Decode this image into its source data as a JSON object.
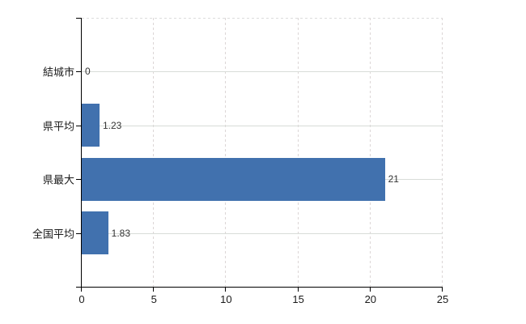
{
  "chart_data": {
    "type": "bar",
    "orientation": "horizontal",
    "categories": [
      "結城市",
      "県平均",
      "県最大",
      "全国平均"
    ],
    "values": [
      0,
      1.23,
      21,
      1.83
    ],
    "value_labels": [
      "0",
      "1.23",
      "21",
      "1.83"
    ],
    "xlim": [
      0,
      25
    ],
    "xticks": [
      0,
      5,
      10,
      15,
      20,
      25
    ],
    "xtick_labels": [
      "0",
      "5",
      "10",
      "15",
      "20",
      "25"
    ],
    "grid": {
      "horizontal_style": "solid",
      "vertical_style": "dashed",
      "top_border_style": "dashed"
    },
    "legend": "none",
    "colors": {
      "bar": "#4171AE",
      "gridline_solid": "#d8dcd8",
      "gridline_dashed": "#dcd6d6",
      "axis": "#000000",
      "tick_label": "#1a1a1a",
      "value_label": "#333333",
      "background": "#ffffff"
    }
  }
}
